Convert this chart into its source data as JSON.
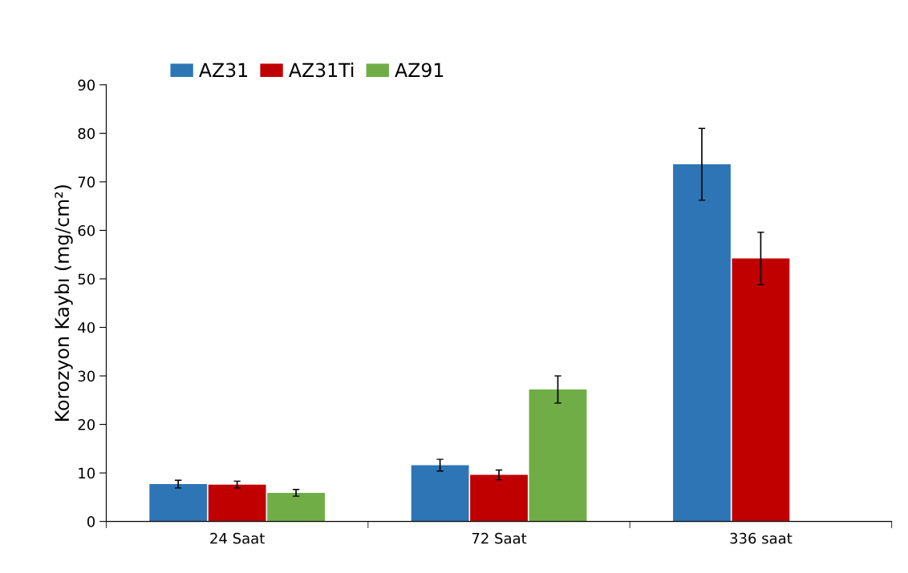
{
  "chart_data": {
    "type": "bar",
    "ylabel": "Korozyon Kaybı (mg/cm²)",
    "categories": [
      "24 Saat",
      "72 Saat",
      "336 saat"
    ],
    "series": [
      {
        "name": "AZ31",
        "color": "#2e75b6",
        "values": [
          7.7,
          11.6,
          73.6
        ],
        "errors": [
          0.8,
          1.2,
          7.4
        ]
      },
      {
        "name": "AZ31Ti",
        "color": "#c00000",
        "values": [
          7.6,
          9.6,
          54.2
        ],
        "errors": [
          0.7,
          1.0,
          5.4
        ]
      },
      {
        "name": "AZ91",
        "color": "#70ad47",
        "values": [
          5.9,
          27.2,
          null
        ],
        "errors": [
          0.7,
          2.8,
          null
        ]
      }
    ],
    "ylim": [
      0,
      90
    ],
    "yticks": [
      0,
      10,
      20,
      30,
      40,
      50,
      60,
      70,
      80,
      90
    ],
    "grid": false,
    "legend": "top left"
  }
}
